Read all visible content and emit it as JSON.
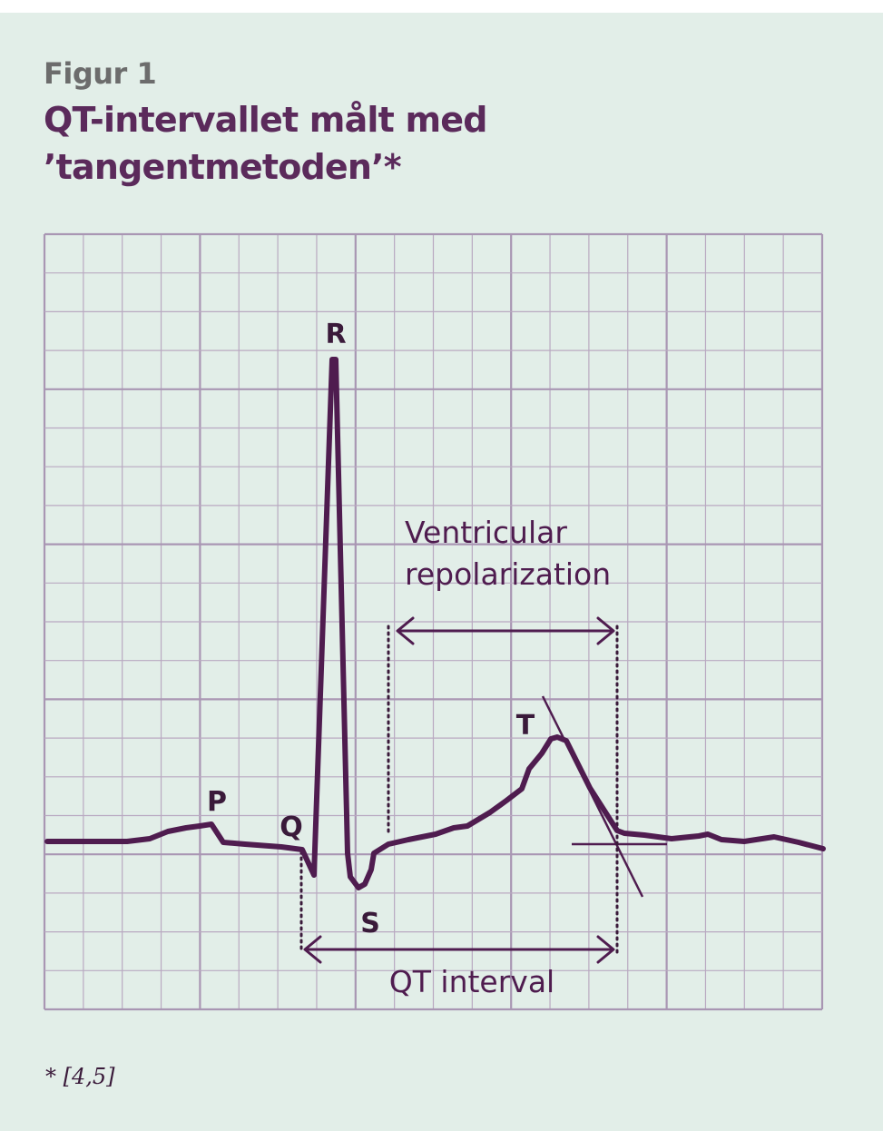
{
  "figure": {
    "label": "Figur 1",
    "title_line1": "QT-intervallet målt med",
    "title_line2": "’tangentmetoden’*"
  },
  "waves": {
    "P": "P",
    "Q": "Q",
    "R": "R",
    "S": "S",
    "T": "T"
  },
  "annotations": {
    "ventricular_line1": "Ventricular",
    "ventricular_line2": "repolarization",
    "qt_interval": "QT interval"
  },
  "footnote": "* [4,5]",
  "colors": {
    "background": "#e2eee8",
    "grid_minor": "#b9a9c1",
    "grid_major": "#a996b3",
    "trace": "#4f1c4f",
    "title": "#5b2a5b",
    "label": "#6c6c6c"
  }
}
